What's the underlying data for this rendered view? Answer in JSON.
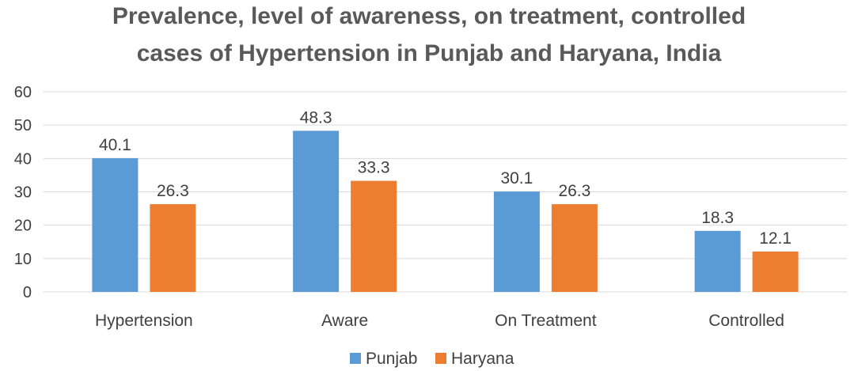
{
  "chart_data": {
    "type": "bar",
    "title_line1": "Prevalence, level of awareness, on treatment, controlled",
    "title_line2": "cases of Hypertension in Punjab and Haryana, India",
    "categories": [
      "Hypertension",
      "Aware",
      "On Treatment",
      "Controlled"
    ],
    "series": [
      {
        "name": "Punjab",
        "color": "#5b9bd5",
        "values": [
          40.1,
          48.3,
          30.1,
          18.3
        ]
      },
      {
        "name": "Haryana",
        "color": "#ed7d31",
        "values": [
          26.3,
          33.3,
          26.3,
          12.1
        ]
      }
    ],
    "ylim": [
      0,
      60
    ],
    "yticks": [
      0,
      10,
      20,
      30,
      40,
      50,
      60
    ],
    "grid": true,
    "legend_position": "bottom",
    "data_labels": true
  }
}
